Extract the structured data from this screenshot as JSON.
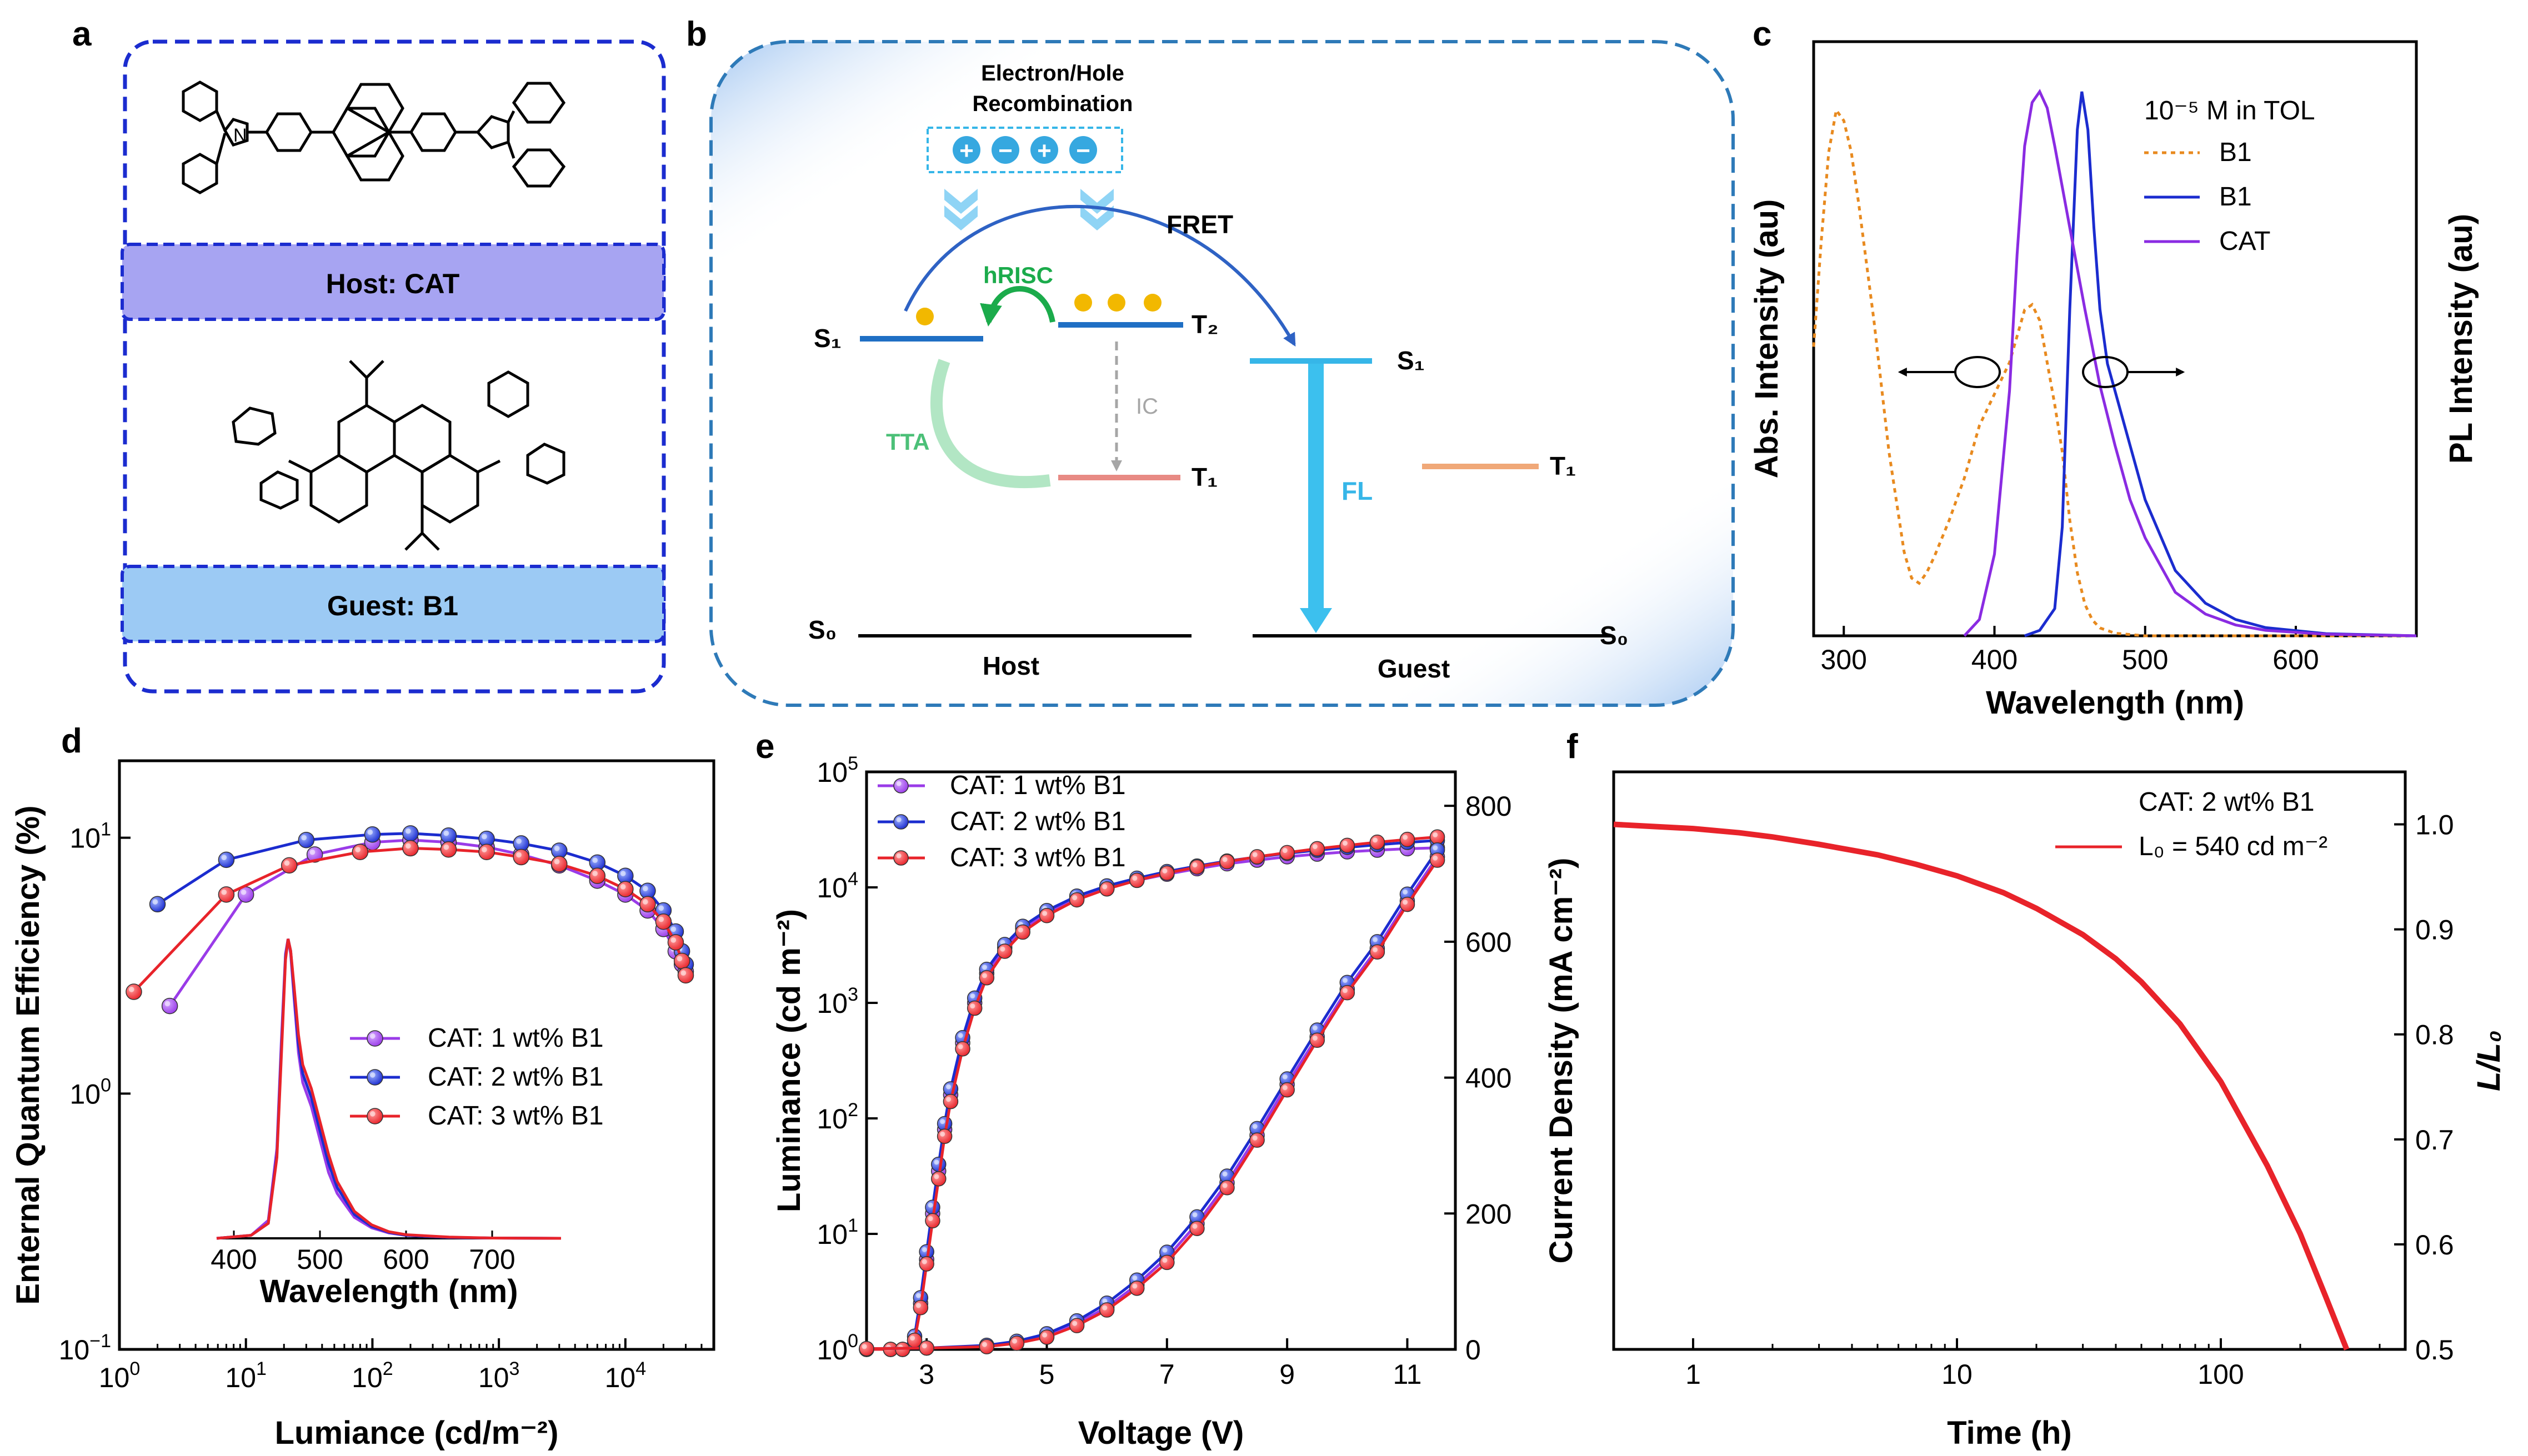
{
  "panels": {
    "a": {
      "label": "a",
      "host_label": "Host: CAT",
      "guest_label": "Guest: B1"
    },
    "b": {
      "label": "b",
      "recombination_line1": "Electron/Hole",
      "recombination_line2": "Recombination",
      "charges": [
        "+",
        "−",
        "+",
        "−"
      ],
      "fret": "FRET",
      "hrisc": "hRISC",
      "tta": "TTA",
      "ic": "IC",
      "fl": "FL",
      "s1_host": "S₁",
      "t2": "T₂",
      "t1_host": "T₁",
      "s0_host": "S₀",
      "s1_guest": "S₁",
      "t1_guest": "T₁",
      "s0_guest": "S₀",
      "host": "Host",
      "guest": "Guest",
      "colors": {
        "s1": "#1f6fc4",
        "t1": "#e88a84",
        "guest_s1": "#36b6e8",
        "guest_t1": "#f0a878",
        "fl": "#3cc0ee",
        "hrisc": "#1bab4b",
        "tta": "#4cc078"
      }
    }
  },
  "chart_data": [
    {
      "panel": "c",
      "type": "line",
      "xlabel": "Wavelength (nm)",
      "ylabel_left": "Abs. Intensity (au)",
      "ylabel_right": "PL Intensity (au)",
      "xlim": [
        280,
        680
      ],
      "xticks": [
        300,
        400,
        500,
        600
      ],
      "legend_title": "10⁻⁵ M in TOL",
      "series": [
        {
          "name": "B1",
          "kind": "absorption",
          "color": "#e88a1f",
          "dash": true,
          "x": [
            280,
            285,
            290,
            295,
            300,
            305,
            310,
            320,
            330,
            340,
            345,
            350,
            355,
            360,
            370,
            380,
            390,
            400,
            410,
            415,
            420,
            425,
            430,
            435,
            440,
            445,
            450,
            455,
            460,
            465,
            470,
            480,
            500,
            550,
            680
          ],
          "y": [
            0.55,
            0.75,
            0.92,
            1.0,
            0.98,
            0.92,
            0.82,
            0.6,
            0.35,
            0.16,
            0.11,
            0.1,
            0.12,
            0.15,
            0.22,
            0.3,
            0.4,
            0.46,
            0.52,
            0.57,
            0.62,
            0.63,
            0.6,
            0.52,
            0.44,
            0.35,
            0.22,
            0.12,
            0.06,
            0.03,
            0.015,
            0.005,
            0,
            0,
            0
          ]
        },
        {
          "name": "B1",
          "kind": "PL",
          "color": "#1b2ccf",
          "dash": false,
          "x": [
            420,
            430,
            440,
            445,
            450,
            455,
            458,
            462,
            466,
            470,
            475,
            480,
            490,
            500,
            520,
            540,
            560,
            580,
            620,
            680
          ],
          "y": [
            0,
            0.01,
            0.05,
            0.2,
            0.6,
            0.93,
            1.0,
            0.93,
            0.75,
            0.6,
            0.5,
            0.45,
            0.35,
            0.25,
            0.12,
            0.06,
            0.03,
            0.015,
            0.004,
            0
          ]
        },
        {
          "name": "CAT",
          "kind": "PL",
          "color": "#8a2be2",
          "dash": false,
          "x": [
            380,
            390,
            400,
            410,
            415,
            420,
            425,
            430,
            435,
            440,
            450,
            460,
            470,
            480,
            490,
            500,
            520,
            540,
            560,
            580,
            620,
            680
          ],
          "y": [
            0,
            0.03,
            0.15,
            0.45,
            0.7,
            0.9,
            0.98,
            1.0,
            0.97,
            0.9,
            0.75,
            0.6,
            0.46,
            0.35,
            0.25,
            0.18,
            0.08,
            0.04,
            0.02,
            0.01,
            0.003,
            0
          ]
        }
      ]
    },
    {
      "panel": "d",
      "type": "scatter",
      "xlabel": "Lumiance (cd/m⁻²)",
      "ylabel": "Enternal Quantum Efficiency (%)",
      "xscale": "log",
      "yscale": "log",
      "xlim": [
        1,
        50000
      ],
      "ylim": [
        0.1,
        20
      ],
      "series": [
        {
          "name": "CAT: 1 wt% B1",
          "color": "#9a3be8",
          "x": [
            2.5,
            10,
            35,
            100,
            200,
            400,
            800,
            1500,
            3000,
            6000,
            10000,
            15000,
            20000,
            25000,
            28000,
            30000
          ],
          "y": [
            2.2,
            6.0,
            8.6,
            9.6,
            9.8,
            9.6,
            9.2,
            8.6,
            7.8,
            6.8,
            6.0,
            5.2,
            4.4,
            3.6,
            3.2,
            3.0
          ]
        },
        {
          "name": "CAT: 2 wt% B1",
          "color": "#1b2ccf",
          "x": [
            2,
            7,
            30,
            100,
            200,
            400,
            800,
            1500,
            3000,
            6000,
            10000,
            15000,
            20000,
            25000,
            28000,
            30000
          ],
          "y": [
            5.5,
            8.2,
            9.8,
            10.3,
            10.4,
            10.2,
            9.9,
            9.5,
            8.9,
            8.0,
            7.1,
            6.2,
            5.2,
            4.3,
            3.6,
            3.2
          ]
        },
        {
          "name": "CAT: 3 wt% B1",
          "color": "#e8232a",
          "x": [
            1.3,
            7,
            22,
            80,
            200,
            400,
            800,
            1500,
            3000,
            6000,
            10000,
            15000,
            20000,
            25000,
            28000,
            30000
          ],
          "y": [
            2.5,
            6.0,
            7.8,
            8.8,
            9.1,
            9.0,
            8.8,
            8.4,
            7.9,
            7.1,
            6.3,
            5.5,
            4.7,
            3.9,
            3.3,
            2.9
          ]
        }
      ],
      "inset": {
        "xlabel": "Wavelength (nm)",
        "xlim": [
          380,
          780
        ],
        "xticks": [
          400,
          500,
          600,
          700
        ],
        "x": [
          380,
          420,
          440,
          450,
          455,
          460,
          463,
          466,
          470,
          475,
          480,
          490,
          500,
          510,
          520,
          540,
          560,
          580,
          600,
          650,
          700,
          780
        ],
        "series": [
          {
            "name": "CAT: 1 wt% B1",
            "color": "#9a3be8",
            "y": [
              0,
              0.01,
              0.06,
              0.3,
              0.65,
              0.95,
              1.0,
              0.95,
              0.8,
              0.62,
              0.52,
              0.44,
              0.33,
              0.22,
              0.15,
              0.07,
              0.035,
              0.018,
              0.01,
              0.003,
              0.001,
              0
            ]
          },
          {
            "name": "CAT: 2 wt% B1",
            "color": "#1b2ccf",
            "y": [
              0,
              0.01,
              0.05,
              0.28,
              0.62,
              0.94,
              1.0,
              0.96,
              0.82,
              0.65,
              0.55,
              0.47,
              0.36,
              0.25,
              0.17,
              0.08,
              0.04,
              0.02,
              0.01,
              0.003,
              0.001,
              0
            ]
          },
          {
            "name": "CAT: 3 wt% B1",
            "color": "#e8232a",
            "y": [
              0,
              0.01,
              0.05,
              0.27,
              0.6,
              0.93,
              1.0,
              0.96,
              0.84,
              0.68,
              0.58,
              0.5,
              0.39,
              0.28,
              0.19,
              0.09,
              0.045,
              0.022,
              0.012,
              0.004,
              0.001,
              0
            ]
          }
        ]
      }
    },
    {
      "panel": "e",
      "type": "scatter",
      "xlabel": "Voltage (V)",
      "ylabel_left": "Luminance (cd m⁻²)",
      "ylabel_right": "Current Density (mA cm⁻²)",
      "xlim": [
        2,
        11.8
      ],
      "xticks": [
        3,
        5,
        7,
        9,
        11
      ],
      "ylim_left": [
        1,
        100000
      ],
      "yscale_left": "log",
      "ylim_right": [
        0,
        850
      ],
      "yticks_right": [
        0,
        200,
        400,
        600,
        800
      ],
      "luminance_series": [
        {
          "name": "CAT: 1 wt% B1",
          "color": "#9a3be8",
          "x": [
            2,
            2.4,
            2.6,
            2.8,
            2.9,
            3.0,
            3.1,
            3.2,
            3.3,
            3.4,
            3.6,
            3.8,
            4.0,
            4.3,
            4.6,
            5.0,
            5.5,
            6.0,
            6.5,
            7.0,
            7.5,
            8.0,
            8.5,
            9.0,
            9.5,
            10.0,
            10.5,
            11.0,
            11.5
          ],
          "y": [
            1,
            1,
            1,
            1.2,
            2.5,
            6,
            15,
            35,
            80,
            160,
            450,
            1000,
            1800,
            3000,
            4400,
            6000,
            8000,
            9800,
            11500,
            13000,
            14500,
            16000,
            17200,
            18400,
            19400,
            20300,
            21000,
            21600,
            22000
          ]
        },
        {
          "name": "CAT: 2 wt% B1",
          "color": "#1b2ccf",
          "x": [
            2,
            2.4,
            2.6,
            2.8,
            2.9,
            3.0,
            3.1,
            3.2,
            3.3,
            3.4,
            3.6,
            3.8,
            4.0,
            4.3,
            4.6,
            5.0,
            5.5,
            6.0,
            6.5,
            7.0,
            7.5,
            8.0,
            8.5,
            9.0,
            9.5,
            10.0,
            10.5,
            11.0,
            11.5
          ],
          "y": [
            1,
            1,
            1,
            1.3,
            2.8,
            7,
            17,
            40,
            90,
            180,
            500,
            1100,
            1950,
            3200,
            4600,
            6300,
            8400,
            10300,
            12000,
            13700,
            15300,
            16900,
            18300,
            19700,
            21000,
            22200,
            23400,
            24500,
            25500
          ]
        },
        {
          "name": "CAT: 3 wt% B1",
          "color": "#e8232a",
          "x": [
            2,
            2.4,
            2.6,
            2.8,
            2.9,
            3.0,
            3.1,
            3.2,
            3.3,
            3.4,
            3.6,
            3.8,
            4.0,
            4.3,
            4.6,
            5.0,
            5.5,
            6.0,
            6.5,
            7.0,
            7.5,
            8.0,
            8.5,
            9.0,
            9.5,
            10.0,
            10.5,
            11.0,
            11.5
          ],
          "y": [
            1,
            1,
            1,
            1.2,
            2.3,
            5.5,
            13,
            30,
            70,
            140,
            400,
            900,
            1650,
            2800,
            4100,
            5700,
            7800,
            9700,
            11500,
            13300,
            15000,
            16700,
            18400,
            20000,
            21600,
            23100,
            24600,
            26000,
            27300
          ]
        }
      ],
      "current_series": [
        {
          "name": "CAT: 1 wt% B1",
          "color": "#9a3be8",
          "x": [
            2,
            3,
            4,
            4.5,
            5,
            5.5,
            6,
            6.5,
            7,
            7.5,
            8,
            8.5,
            9,
            9.5,
            10,
            10.5,
            11,
            11.5
          ],
          "y": [
            1,
            2,
            5,
            10,
            20,
            38,
            62,
            95,
            135,
            185,
            245,
            315,
            390,
            460,
            530,
            590,
            660,
            725
          ]
        },
        {
          "name": "CAT: 2 wt% B1",
          "color": "#1b2ccf",
          "x": [
            2,
            3,
            4,
            4.5,
            5,
            5.5,
            6,
            6.5,
            7,
            7.5,
            8,
            8.5,
            9,
            9.5,
            10,
            10.5,
            11,
            11.5
          ],
          "y": [
            1,
            2,
            6,
            12,
            23,
            42,
            68,
            102,
            143,
            195,
            255,
            325,
            398,
            470,
            540,
            600,
            670,
            735
          ]
        },
        {
          "name": "CAT: 3 wt% B1",
          "color": "#e8232a",
          "x": [
            2,
            3,
            4,
            4.5,
            5,
            5.5,
            6,
            6.5,
            7,
            7.5,
            8,
            8.5,
            9,
            9.5,
            10,
            10.5,
            11,
            11.5
          ],
          "y": [
            1,
            2,
            4,
            9,
            18,
            35,
            58,
            90,
            128,
            178,
            238,
            308,
            382,
            455,
            525,
            585,
            655,
            720
          ]
        }
      ]
    },
    {
      "panel": "f",
      "type": "line",
      "xlabel": "Time (h)",
      "ylabel": "L/L₀",
      "xscale": "log",
      "xlim": [
        0.5,
        500
      ],
      "xticks": [
        1,
        10,
        100
      ],
      "ylim": [
        0.5,
        1.05
      ],
      "yticks": [
        0.5,
        0.6,
        0.7,
        0.8,
        0.9,
        1.0
      ],
      "legend_title": "CAT: 2 wt% B1",
      "series": [
        {
          "name": "L₀ = 540 cd m⁻²",
          "color": "#e8232a",
          "x": [
            0.5,
            0.7,
            1,
            1.5,
            2,
            3,
            5,
            7,
            10,
            15,
            20,
            30,
            40,
            50,
            70,
            100,
            150,
            200,
            250,
            300
          ],
          "y": [
            1.0,
            0.998,
            0.996,
            0.992,
            0.988,
            0.981,
            0.971,
            0.962,
            0.951,
            0.935,
            0.92,
            0.895,
            0.872,
            0.85,
            0.81,
            0.755,
            0.675,
            0.61,
            0.55,
            0.5
          ]
        }
      ]
    }
  ]
}
